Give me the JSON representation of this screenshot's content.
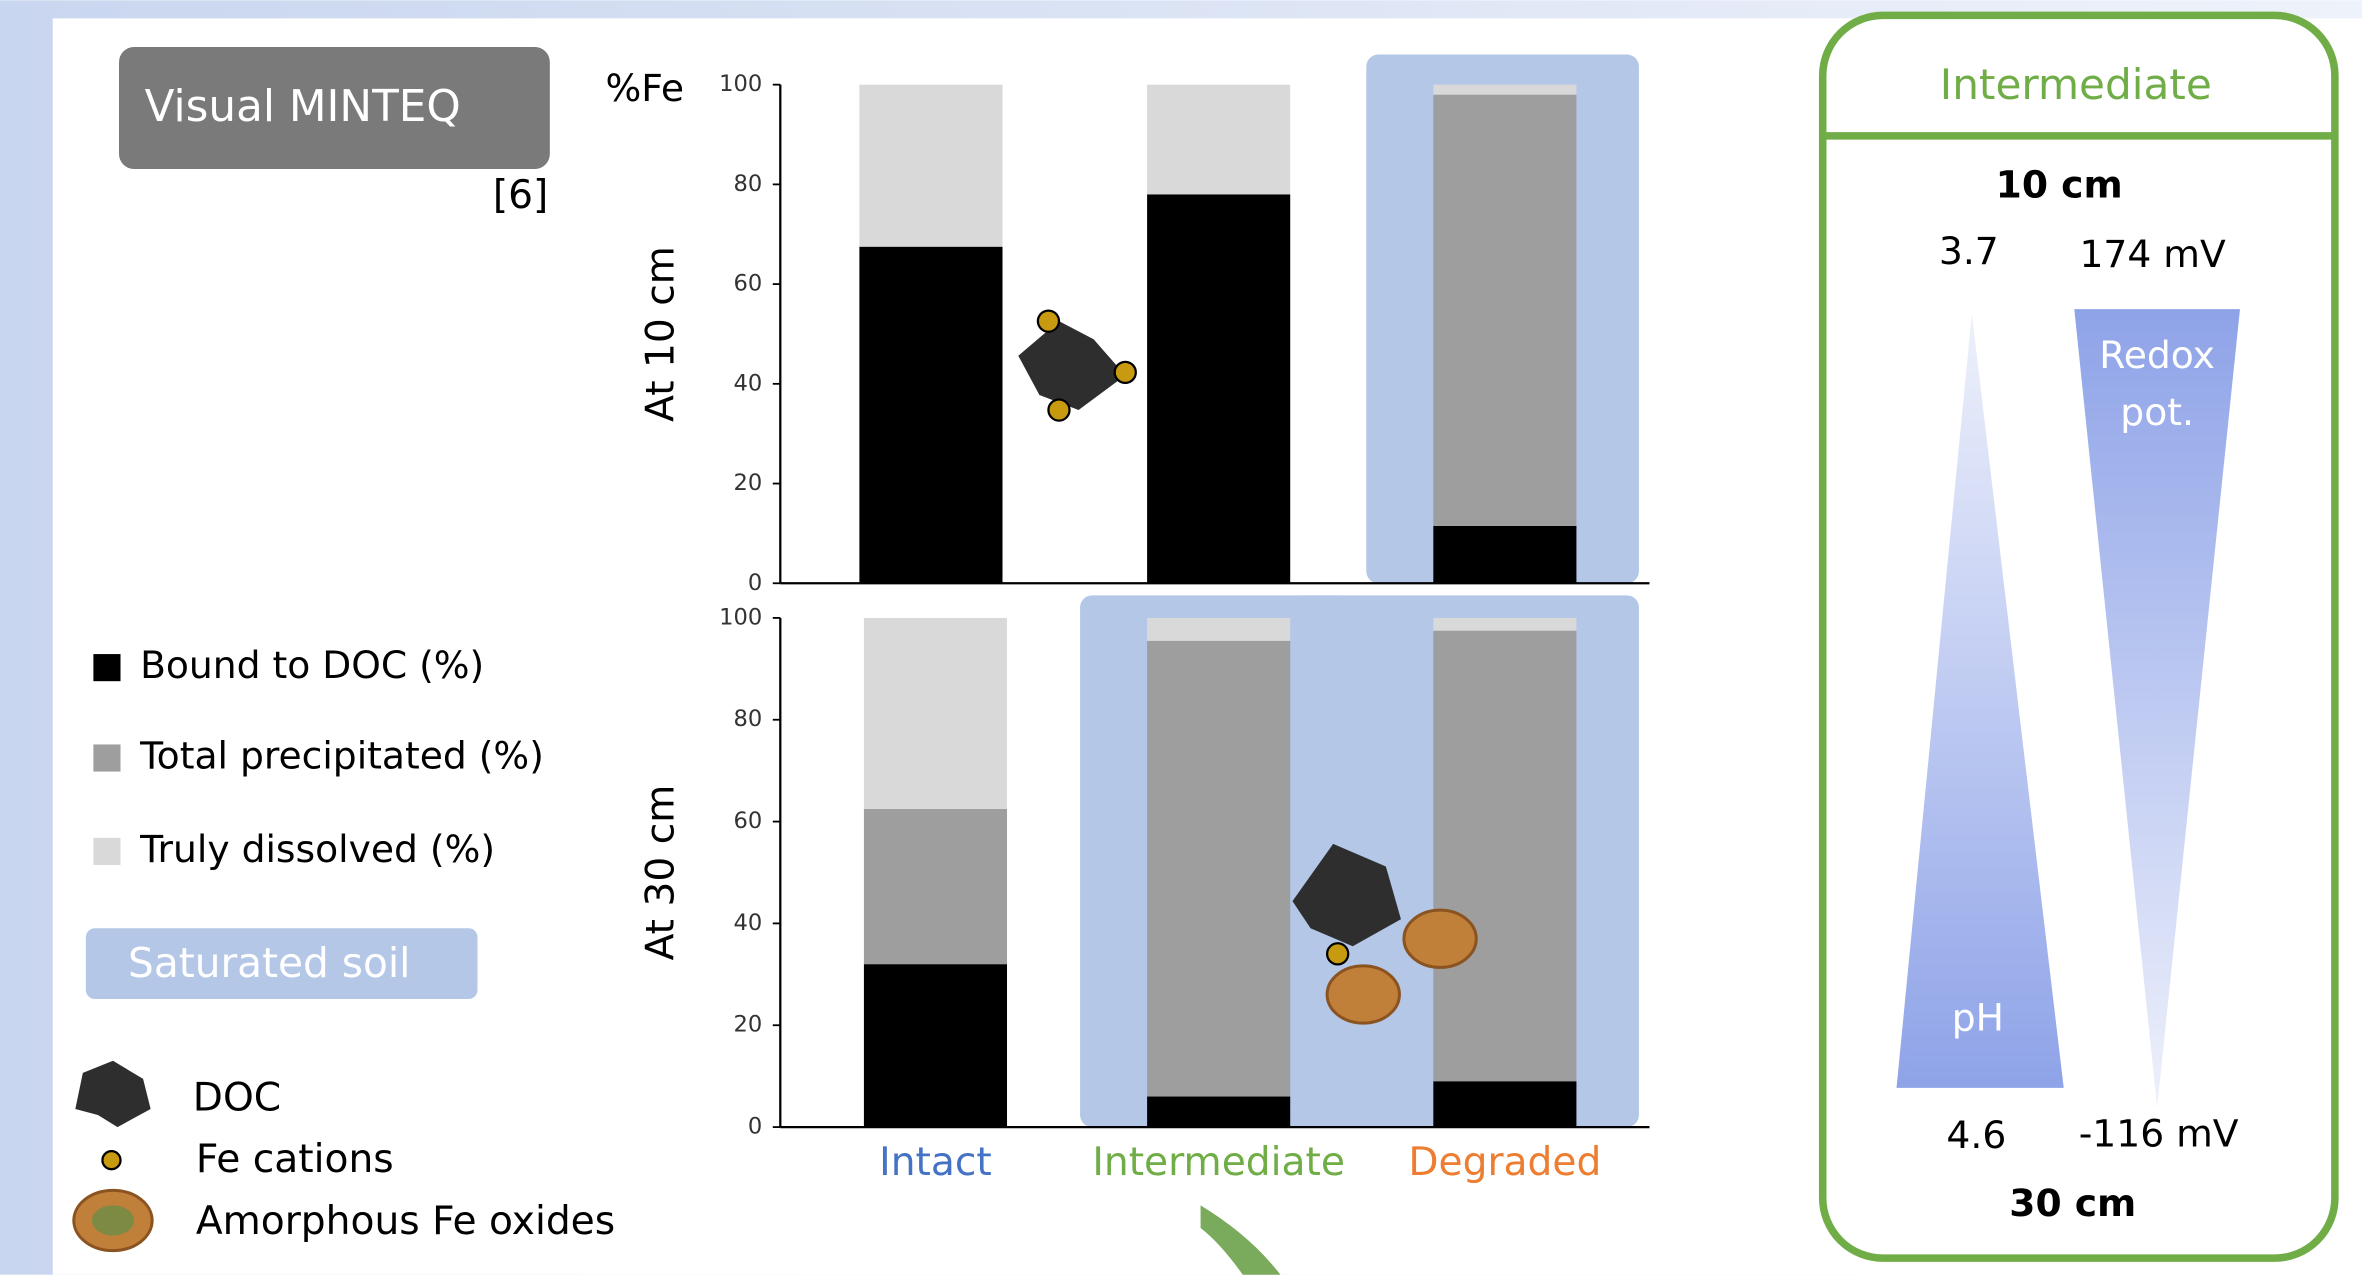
{
  "chart_data": [
    {
      "type": "bar",
      "stacked": true,
      "unit_label": "%Fe",
      "y_label": "At 10 cm",
      "ylim": [
        0,
        100
      ],
      "yticks": [
        0,
        20,
        40,
        60,
        80,
        100
      ],
      "highlighted": [
        false,
        false,
        true
      ],
      "highlight_color": "#b4c7e7",
      "series": [
        {
          "name": "Bound to DOC (%)",
          "color": "#000000",
          "values": [
            67.5,
            78,
            11.5
          ]
        },
        {
          "name": "Total precipitated (%)",
          "color": "#9e9e9e",
          "values": [
            0,
            0,
            86.5
          ]
        },
        {
          "name": "Truly dissolved (%)",
          "color": "#d9d9d9",
          "values": [
            32.5,
            22,
            2
          ]
        }
      ]
    },
    {
      "type": "bar",
      "stacked": true,
      "y_label": "At 30 cm",
      "ylim": [
        0,
        100
      ],
      "yticks": [
        0,
        20,
        40,
        60,
        80,
        100
      ],
      "categories": [
        "Intact",
        "Intermediate",
        "Degraded"
      ],
      "category_colors": [
        "#4472c4",
        "#70ad47",
        "#ed7d31"
      ],
      "highlighted": [
        false,
        true,
        true
      ],
      "highlight_color": "#b4c7e7",
      "series": [
        {
          "color": "#000000",
          "values": [
            32,
            6,
            9
          ]
        },
        {
          "color": "#9e9e9e",
          "values": [
            30.5,
            89.5,
            88.5
          ]
        },
        {
          "color": "#d9d9d9",
          "values": [
            37.5,
            4.5,
            2.5
          ]
        }
      ]
    }
  ],
  "header": {
    "title": "Visual MINTEQ",
    "reference": "[6]"
  },
  "legend_extra": {
    "highlight": "Saturated soil",
    "doc": "DOC",
    "fe": "Fe cations",
    "oxides": "Amorphous Fe oxides"
  },
  "panel": {
    "title": "Intermediate",
    "top_depth": "10 cm",
    "ph_top": "3.7",
    "redox_top": "174 mV",
    "redox_label": [
      "Redox",
      "pot."
    ],
    "ph_label": "pH",
    "ph_bottom": "4.6",
    "redox_bottom": "-116 mV",
    "bottom_depth": "30 cm"
  }
}
